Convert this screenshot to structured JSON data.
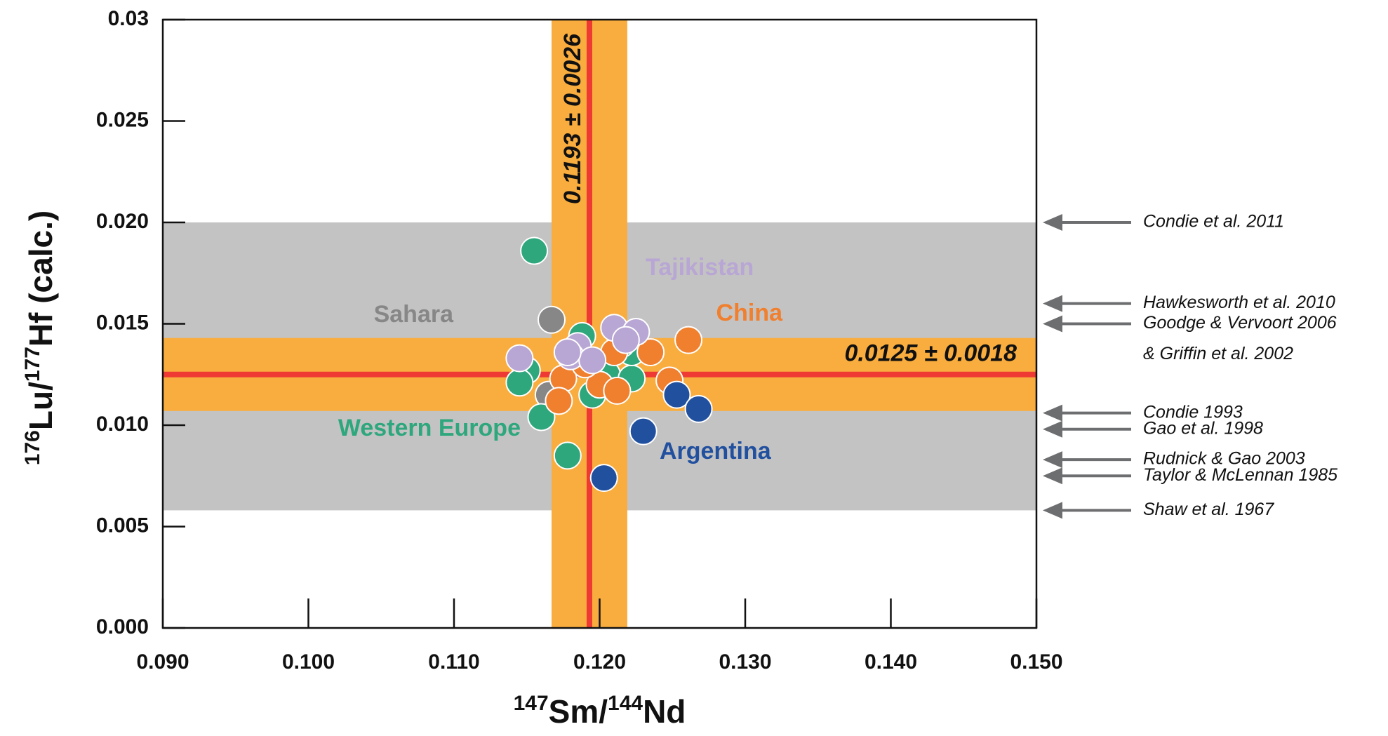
{
  "chart_data": {
    "type": "scatter",
    "x_label_parts": [
      "147",
      "Sm/",
      "144",
      "Nd"
    ],
    "y_label_parts": [
      "176",
      "Lu/",
      "177",
      "Hf (calc.)"
    ],
    "xlim": [
      0.09,
      0.15
    ],
    "ylim": [
      0,
      0.03
    ],
    "xticks": [
      {
        "value": 0.09,
        "label": "0.090"
      },
      {
        "value": 0.1,
        "label": "0.100"
      },
      {
        "value": 0.11,
        "label": "0.110"
      },
      {
        "value": 0.12,
        "label": "0.120"
      },
      {
        "value": 0.13,
        "label": "0.130"
      },
      {
        "value": 0.14,
        "label": "0.140"
      },
      {
        "value": 0.15,
        "label": "0.150"
      }
    ],
    "yticks": [
      {
        "value": 0,
        "label": "0.000"
      },
      {
        "value": 0.005,
        "label": "0.005"
      },
      {
        "value": 0.01,
        "label": "0.010"
      },
      {
        "value": 0.015,
        "label": "0.015"
      },
      {
        "value": 0.02,
        "label": "0.020"
      },
      {
        "value": 0.025,
        "label": "0.025"
      },
      0.03
    ],
    "grid": false,
    "range_band": {
      "y": [
        0.0058,
        0.02
      ],
      "color": "#c4c3c3"
    },
    "x_band": {
      "center": 0.1193,
      "error": 0.0026,
      "label": "0.1193 ± 0.0026",
      "color": "#f9ad3e",
      "line_color": "#ee3a32"
    },
    "y_band": {
      "center": 0.0125,
      "error": 0.0018,
      "label": "0.0125 ± 0.0018",
      "color": "#f9ad3e",
      "line_color": "#ee3a32"
    },
    "series": [
      {
        "name": "Sahara",
        "color": "#878787",
        "x": [
          0.1167,
          0.1165
        ],
        "values": [
          0.0152,
          0.0115
        ]
      },
      {
        "name": "Western Europe",
        "color": "#2ea77d",
        "x": [
          0.1155,
          0.115,
          0.1145,
          0.116,
          0.1178,
          0.1188,
          0.1195,
          0.1205,
          0.1222,
          0.1222,
          0.1215
        ],
        "values": [
          0.0186,
          0.0127,
          0.0121,
          0.0104,
          0.0085,
          0.0144,
          0.0115,
          0.0125,
          0.0123,
          0.0136,
          0.014
        ]
      },
      {
        "name": "China",
        "color": "#f07f2e",
        "x": [
          0.1261,
          0.1248,
          0.1235,
          0.1175,
          0.1172,
          0.12,
          0.1212,
          0.119,
          0.121
        ],
        "values": [
          0.0142,
          0.0122,
          0.0136,
          0.0123,
          0.0112,
          0.012,
          0.0117,
          0.013,
          0.0136
        ]
      },
      {
        "name": "Argentina",
        "color": "#21509f",
        "x": [
          0.1253,
          0.1268,
          0.123,
          0.1203
        ],
        "values": [
          0.0115,
          0.0108,
          0.0097,
          0.0074
        ]
      },
      {
        "name": "Tajikistan",
        "color": "#b8a6d4",
        "x": [
          0.1145,
          0.1185,
          0.118,
          0.1195,
          0.121,
          0.1225,
          0.1218,
          0.1178
        ],
        "values": [
          0.0133,
          0.0139,
          0.0134,
          0.0132,
          0.0148,
          0.0146,
          0.0142,
          0.0136
        ]
      }
    ],
    "references": [
      {
        "y": 0.02,
        "label": "Condie et al. 2011"
      },
      {
        "y": 0.016,
        "label": "Hawkesworth et al. 2010"
      },
      {
        "y": 0.015,
        "label": "Goodge & Vervoort 2006",
        "label2": "& Griffin et al. 2002"
      },
      {
        "y": 0.0106,
        "label": "Condie 1993"
      },
      {
        "y": 0.0098,
        "label": "Gao et al. 1998"
      },
      {
        "y": 0.0083,
        "label": "Rudnick & Gao 2003"
      },
      {
        "y": 0.0075,
        "label": "Taylor & McLennan 1985"
      },
      {
        "y": 0.0058,
        "label": "Shaw et al. 1967"
      }
    ]
  }
}
